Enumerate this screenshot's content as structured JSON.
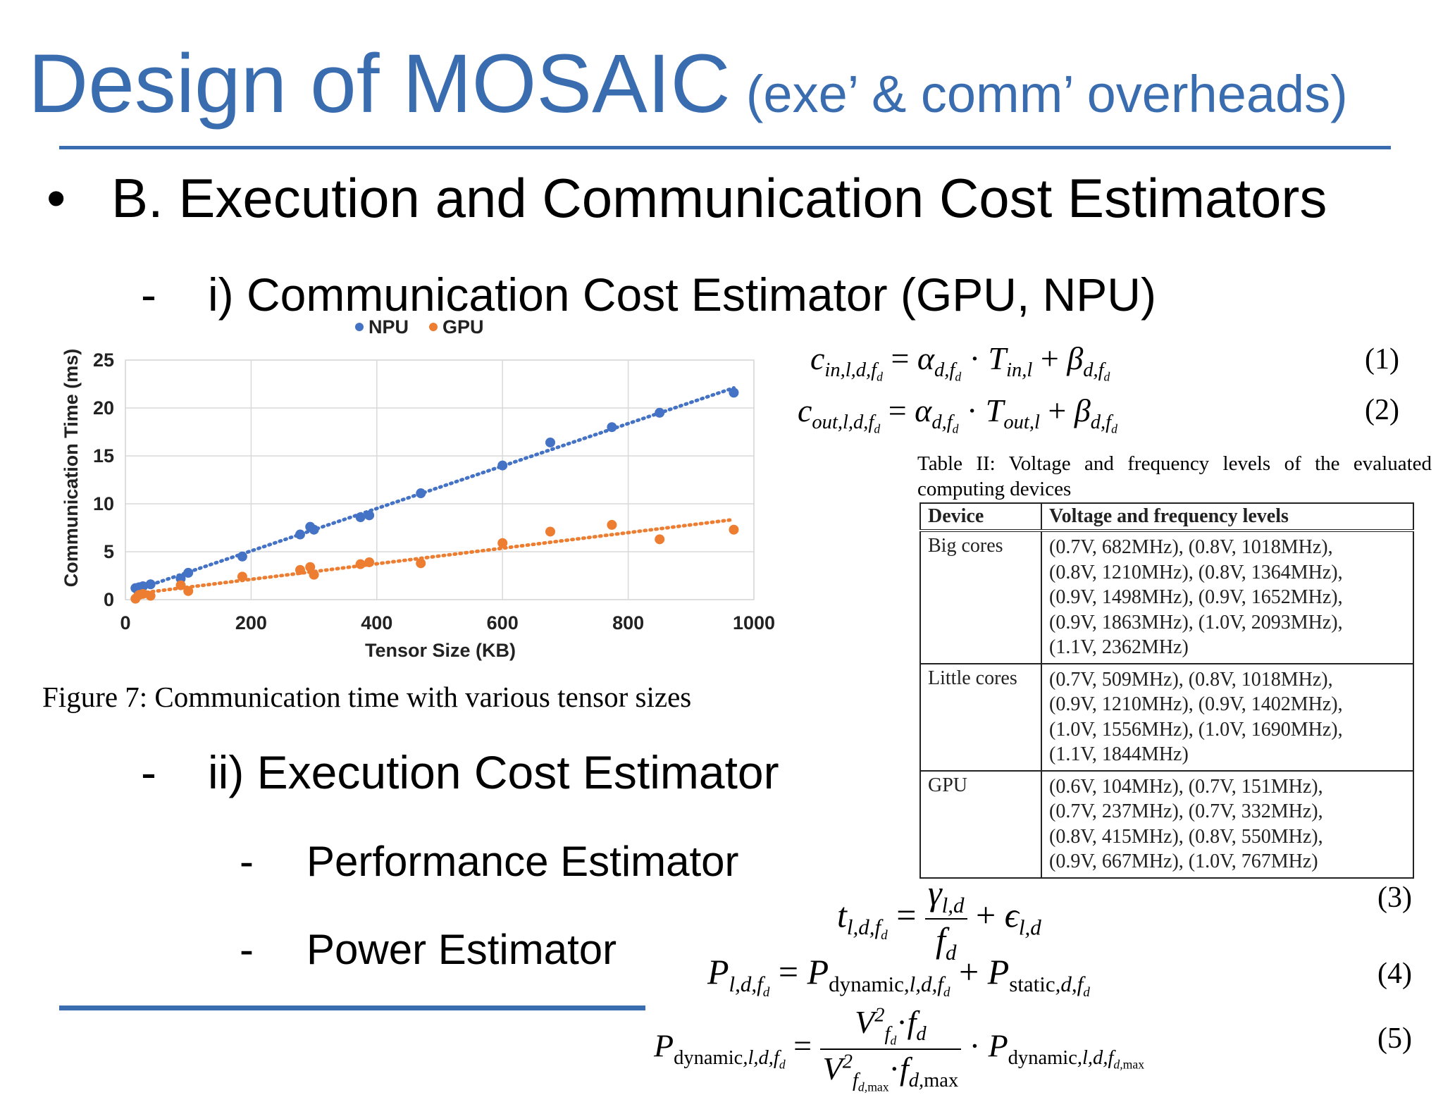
{
  "slide": {
    "title_main": "Design of MOSAIC",
    "title_sub": "(exe’ & comm’ overheads)",
    "bullet_marker": "•",
    "bullet_text": "B. Execution and Communication Cost Estimators",
    "dash": "-",
    "sub1": "i) Communication Cost Estimator (GPU, NPU)",
    "sub2": "ii) Execution Cost Estimator",
    "sub3": "Performance Estimator",
    "sub4": "Power Estimator",
    "figure_caption": "Figure 7: Communication time with various tensor sizes",
    "accent_color": "#3A6DB0"
  },
  "equations": {
    "eq1_num": "(1)",
    "eq2_num": "(2)",
    "eq3_num": "(3)",
    "eq4_num": "(4)",
    "eq5_num": "(5)"
  },
  "table": {
    "caption": "Table II: Voltage and frequency levels of the evaluated computing devices",
    "headers": [
      "Device",
      "Voltage and frequency levels"
    ],
    "rows": [
      {
        "device": "Big cores",
        "lines": [
          "(0.7V, 682MHz), (0.8V, 1018MHz),",
          "(0.8V, 1210MHz), (0.8V, 1364MHz),",
          "(0.9V, 1498MHz), (0.9V, 1652MHz),",
          "(0.9V, 1863MHz), (1.0V, 2093MHz),",
          "(1.1V, 2362MHz)"
        ]
      },
      {
        "device": "Little cores",
        "lines": [
          "(0.7V, 509MHz), (0.8V, 1018MHz),",
          "(0.9V, 1210MHz), (0.9V, 1402MHz),",
          "(1.0V, 1556MHz), (1.0V, 1690MHz),",
          "(1.1V, 1844MHz)"
        ]
      },
      {
        "device": "GPU",
        "lines": [
          "(0.6V, 104MHz), (0.7V, 151MHz),",
          "(0.7V, 237MHz), (0.7V, 332MHz),",
          "(0.8V, 415MHz), (0.8V, 550MHz),",
          "(0.9V, 667MHz), (1.0V, 767MHz)"
        ]
      }
    ]
  },
  "chart_data": {
    "type": "scatter",
    "xlabel": "Tensor Size (KB)",
    "ylabel": "Communication Time (ms)",
    "xlim": [
      0,
      1000
    ],
    "ylim": [
      0,
      25
    ],
    "x_ticks": [
      "0",
      "200",
      "400",
      "600",
      "800",
      "1000"
    ],
    "y_ticks": [
      "0",
      "5",
      "10",
      "15",
      "20",
      "25"
    ],
    "grid": "vertical and horizontal",
    "legend_position": "top",
    "trendline": "linear dotted per series",
    "series": [
      {
        "name": "NPU",
        "color": "#4472C4",
        "x": [
          16,
          22,
          28,
          40,
          88,
          100,
          186,
          278,
          294,
          300,
          374,
          388,
          470,
          600,
          676,
          774,
          850,
          968
        ],
        "y": [
          1.2,
          1.3,
          1.4,
          1.6,
          2.2,
          2.8,
          4.5,
          6.8,
          7.6,
          7.3,
          8.6,
          8.8,
          11.1,
          14.0,
          16.4,
          18.0,
          19.5,
          21.6
        ]
      },
      {
        "name": "GPU",
        "color": "#ED7D31",
        "x": [
          16,
          22,
          28,
          40,
          88,
          100,
          186,
          278,
          294,
          300,
          374,
          388,
          470,
          600,
          676,
          774,
          850,
          968
        ],
        "y": [
          0.1,
          0.5,
          0.6,
          0.4,
          1.5,
          0.9,
          2.4,
          3.1,
          3.4,
          2.6,
          3.7,
          3.9,
          3.8,
          5.9,
          7.1,
          7.8,
          6.3,
          7.3
        ]
      }
    ]
  }
}
